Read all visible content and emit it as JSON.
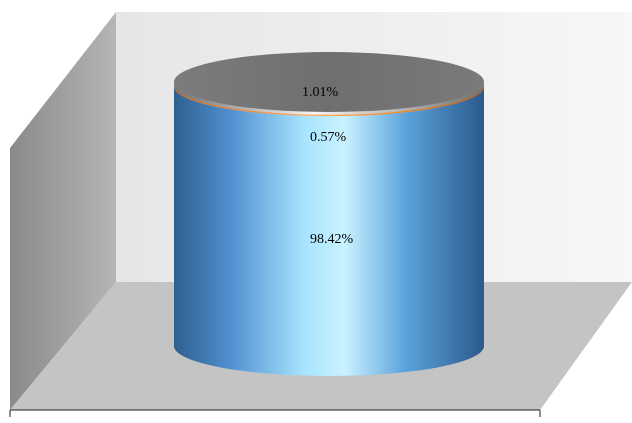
{
  "chart_data": {
    "type": "bar",
    "subtype": "3d-stacked-cylinder",
    "title": "",
    "xlabel": "",
    "ylabel": "",
    "ylim": [
      0,
      100
    ],
    "categories": [
      ""
    ],
    "series": [
      {
        "value": 98.42,
        "label": "98.42%",
        "color": "#4f9ad8"
      },
      {
        "value": 0.57,
        "label": "0.57%",
        "color": "#f08a2e"
      },
      {
        "value": 1.01,
        "label": "1.01%",
        "color": "#a9a9a9"
      }
    ],
    "grid": false,
    "legend": "none"
  }
}
